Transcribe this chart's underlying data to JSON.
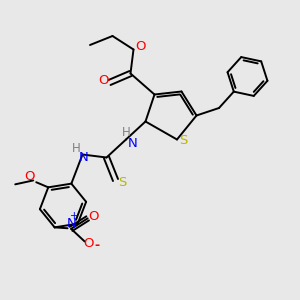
{
  "bg_color": "#e8e8e8",
  "bond_color": "#000000",
  "S_color": "#b8b800",
  "O_color": "#ff0000",
  "N_color": "#0000ff",
  "H_color": "#808080",
  "figsize": [
    3.0,
    3.0
  ],
  "dpi": 100,
  "xlim": [
    0,
    10
  ],
  "ylim": [
    0,
    10
  ]
}
